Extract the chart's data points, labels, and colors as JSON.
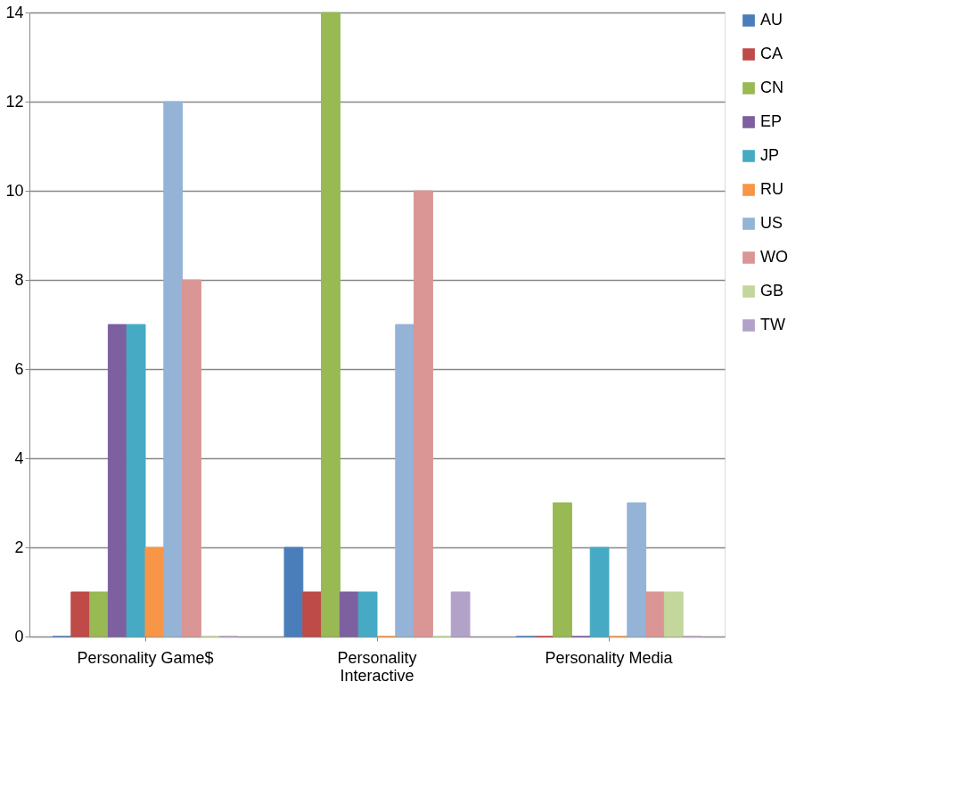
{
  "chart_data": {
    "type": "bar",
    "categories": [
      "Personality Game$",
      "Personality Interactive",
      "Personality Media"
    ],
    "series": [
      {
        "name": "AU",
        "color": "#4a7ebb",
        "values": [
          0,
          2,
          0
        ]
      },
      {
        "name": "CA",
        "color": "#be4b48",
        "values": [
          1,
          1,
          0
        ]
      },
      {
        "name": "CN",
        "color": "#98b954",
        "values": [
          1,
          14,
          3
        ]
      },
      {
        "name": "EP",
        "color": "#7d60a0",
        "values": [
          7,
          1,
          0
        ]
      },
      {
        "name": "JP",
        "color": "#46aac5",
        "values": [
          7,
          1,
          2
        ]
      },
      {
        "name": "RU",
        "color": "#f79646",
        "values": [
          2,
          0,
          0
        ]
      },
      {
        "name": "US",
        "color": "#95b3d7",
        "values": [
          12,
          7,
          3
        ]
      },
      {
        "name": "WO",
        "color": "#d99694",
        "values": [
          8,
          10,
          1
        ]
      },
      {
        "name": "GB",
        "color": "#c3d69b",
        "values": [
          0,
          0,
          1
        ]
      },
      {
        "name": "TW",
        "color": "#b3a2c7",
        "values": [
          0,
          1,
          0
        ]
      }
    ],
    "ylim": [
      0,
      14
    ],
    "yticks": [
      0,
      2,
      4,
      6,
      8,
      10,
      12,
      14
    ],
    "grid": "y",
    "legend": "right"
  }
}
